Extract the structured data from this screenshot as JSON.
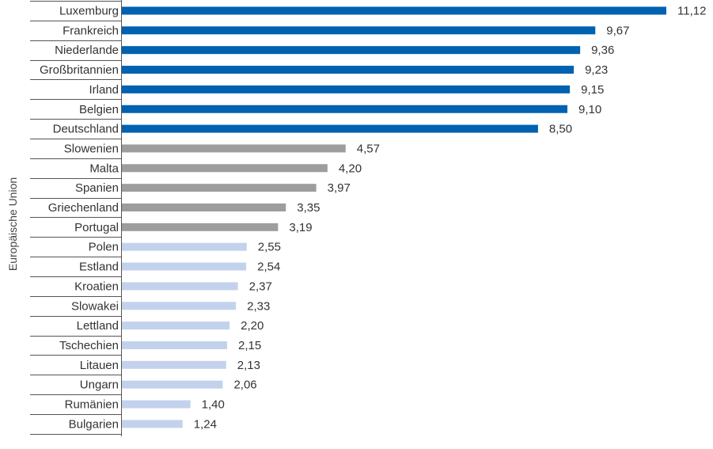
{
  "chart_data": {
    "type": "bar",
    "orientation": "horizontal",
    "group_label": "Europäische Union",
    "categories": [
      "Luxemburg",
      "Frankreich",
      "Niederlande",
      "Großbritannien",
      "Irland",
      "Belgien",
      "Deutschland",
      "Slowenien",
      "Malta",
      "Spanien",
      "Griechenland",
      "Portugal",
      "Polen",
      "Estland",
      "Kroatien",
      "Slowakei",
      "Lettland",
      "Tschechien",
      "Litauen",
      "Ungarn",
      "Rumänien",
      "Bulgarien"
    ],
    "values": [
      11.12,
      9.67,
      9.36,
      9.23,
      9.15,
      9.1,
      8.5,
      4.57,
      4.2,
      3.97,
      3.35,
      3.19,
      2.55,
      2.54,
      2.37,
      2.33,
      2.2,
      2.15,
      2.13,
      2.06,
      1.4,
      1.24
    ],
    "value_labels": [
      "11,12",
      "9,67",
      "9,36",
      "9,23",
      "9,15",
      "9,10",
      "8,50",
      "4,57",
      "4,20",
      "3,97",
      "3,35",
      "3,19",
      "2,55",
      "2,54",
      "2,37",
      "2,33",
      "2,20",
      "2,15",
      "2,13",
      "2,06",
      "1,40",
      "1,24"
    ],
    "bar_colors": [
      "#0062b0",
      "#0062b0",
      "#0062b0",
      "#0062b0",
      "#0062b0",
      "#0062b0",
      "#0062b0",
      "#9d9d9d",
      "#9d9d9d",
      "#9d9d9d",
      "#9d9d9d",
      "#9d9d9d",
      "#c3d2ec",
      "#c3d2ec",
      "#c3d2ec",
      "#c3d2ec",
      "#c3d2ec",
      "#c3d2ec",
      "#c3d2ec",
      "#c3d2ec",
      "#c3d2ec",
      "#c3d2ec"
    ],
    "xlim": [
      0,
      11.12
    ],
    "grid": false,
    "xlabel": "",
    "ylabel": ""
  }
}
